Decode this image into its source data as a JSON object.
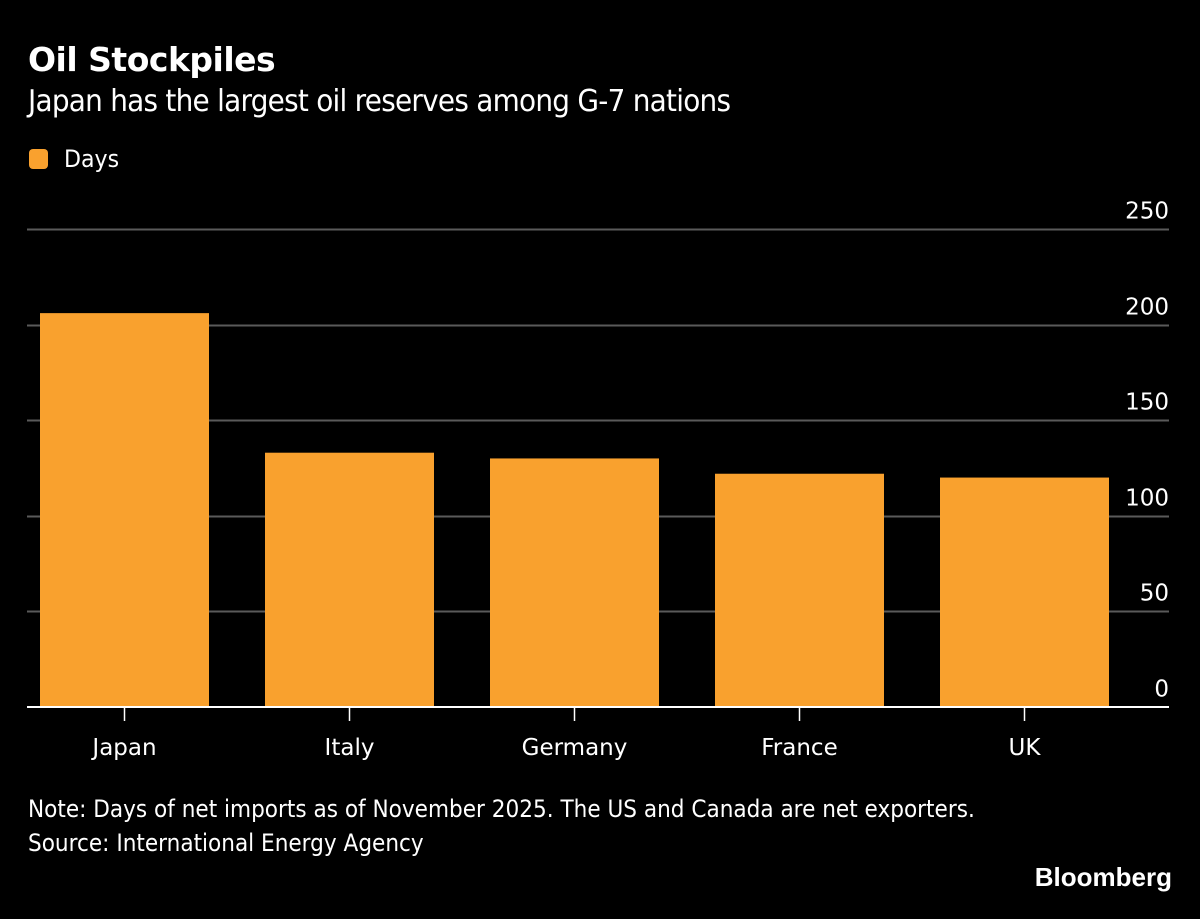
{
  "header": {
    "title": "Oil Stockpiles",
    "subtitle": "Japan has the largest oil reserves among G-7 nations"
  },
  "legend": {
    "label": "Days",
    "color": "#f9a12e"
  },
  "footer": {
    "note": "Note: Days of net imports as of November 2025. The US and Canada are net exporters.",
    "source": "Source: International Energy Agency",
    "brand": "Bloomberg"
  },
  "colors": {
    "background": "#000000",
    "bar": "#f9a12e",
    "gridline": "#5a5a5a",
    "axis": "#ffffff",
    "text": "#ffffff"
  },
  "chart_data": {
    "type": "bar",
    "title": "Oil Stockpiles",
    "subtitle": "Japan has the largest oil reserves among G-7 nations",
    "categories": [
      "Japan",
      "Italy",
      "Germany",
      "France",
      "UK"
    ],
    "series": [
      {
        "name": "Days",
        "values": [
          206,
          133,
          130,
          122,
          120
        ]
      }
    ],
    "xlabel": "",
    "ylabel": "",
    "ylim": [
      0,
      250
    ],
    "yticks": [
      0,
      50,
      100,
      150,
      200,
      250
    ],
    "y_axis_side": "right",
    "grid": true,
    "legend_position": "top-left"
  }
}
